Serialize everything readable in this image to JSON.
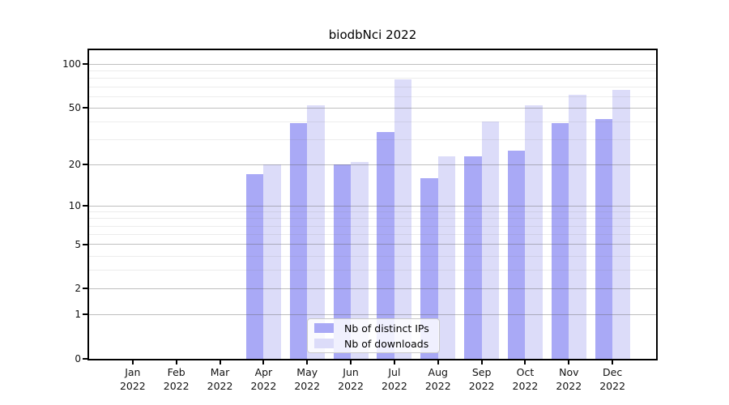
{
  "chart_data": {
    "type": "bar",
    "title": "biodbNci 2022",
    "y_scale": "log1p",
    "ylim": [
      0,
      125
    ],
    "grid": "on",
    "legend_position": "lower center",
    "categories": [
      {
        "month": "Jan",
        "year": "2022"
      },
      {
        "month": "Feb",
        "year": "2022"
      },
      {
        "month": "Mar",
        "year": "2022"
      },
      {
        "month": "Apr",
        "year": "2022"
      },
      {
        "month": "May",
        "year": "2022"
      },
      {
        "month": "Jun",
        "year": "2022"
      },
      {
        "month": "Jul",
        "year": "2022"
      },
      {
        "month": "Aug",
        "year": "2022"
      },
      {
        "month": "Sep",
        "year": "2022"
      },
      {
        "month": "Oct",
        "year": "2022"
      },
      {
        "month": "Nov",
        "year": "2022"
      },
      {
        "month": "Dec",
        "year": "2022"
      }
    ],
    "series": [
      {
        "name": "Nb of distinct IPs",
        "color": "#a9a9f6",
        "values": [
          0,
          0,
          0,
          17,
          39,
          20,
          34,
          16,
          23,
          25,
          39,
          42
        ]
      },
      {
        "name": "Nb of downloads",
        "color": "#dcdcf9",
        "values": [
          0,
          0,
          0,
          20,
          52,
          21,
          79,
          23,
          40,
          52,
          62,
          67
        ]
      }
    ],
    "y_axis": {
      "ticks": [
        100,
        50,
        20,
        10,
        5,
        2,
        1,
        0
      ],
      "tick_labels": [
        "100",
        "50",
        "20",
        "10",
        "5",
        "2",
        "1",
        "0"
      ],
      "minor_gridlines": [
        3,
        4,
        6,
        7,
        8,
        9,
        30,
        40,
        60,
        70,
        80,
        90
      ]
    },
    "colors": {
      "axis": "#000000",
      "major_grid": "#9f9f9f",
      "minor_grid": "#ececec",
      "background": "#ffffff"
    }
  }
}
